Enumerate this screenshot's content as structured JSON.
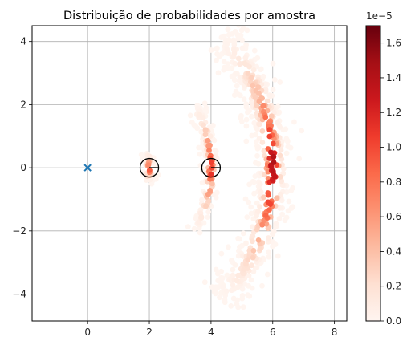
{
  "chart_data": {
    "type": "scatter",
    "title": "Distribuição de probabilidades por amostra",
    "xlabel": "",
    "ylabel": "",
    "xlim": [
      -1.8,
      8.4
    ],
    "ylim": [
      -4.85,
      4.5
    ],
    "xticks": [
      0,
      2,
      4,
      6,
      8
    ],
    "xtick_labels": [
      "0",
      "2",
      "4",
      "6",
      "8"
    ],
    "yticks": [
      4,
      2,
      0,
      -2,
      -4
    ],
    "ytick_labels": [
      "4",
      "2",
      "0",
      "−2",
      "−4"
    ],
    "grid": true,
    "colormap": "Reds",
    "colorbar": {
      "min": 0.0,
      "max": 1.7e-05,
      "ticks": [
        0.0,
        0.2,
        0.4,
        0.6,
        0.8,
        1.0,
        1.2,
        1.4,
        1.6
      ],
      "tick_labels": [
        "0.0",
        "0.2",
        "0.4",
        "0.6",
        "0.8",
        "1.0",
        "1.2",
        "1.4",
        "1.6"
      ],
      "offset_label": "1e−5"
    },
    "origin_marker": {
      "x": 0,
      "y": 0,
      "marker": "x",
      "color": "#1f77b4"
    },
    "circle_markers": [
      {
        "x": 2,
        "y": 0,
        "radius": 0.3
      },
      {
        "x": 4,
        "y": 0,
        "radius": 0.3
      }
    ],
    "sample_bands": [
      {
        "radius": 2.0,
        "angle_range_deg": [
          -14,
          14
        ],
        "width": 0.12,
        "peak_value": 1.3e-05
      },
      {
        "radius": 4.0,
        "angle_range_deg": [
          -30,
          30
        ],
        "width": 0.15,
        "peak_value": 1.4e-05
      },
      {
        "radius": 6.0,
        "angle_range_deg": [
          -44,
          44
        ],
        "width": 0.35,
        "peak_value": 1.7e-05
      }
    ]
  }
}
